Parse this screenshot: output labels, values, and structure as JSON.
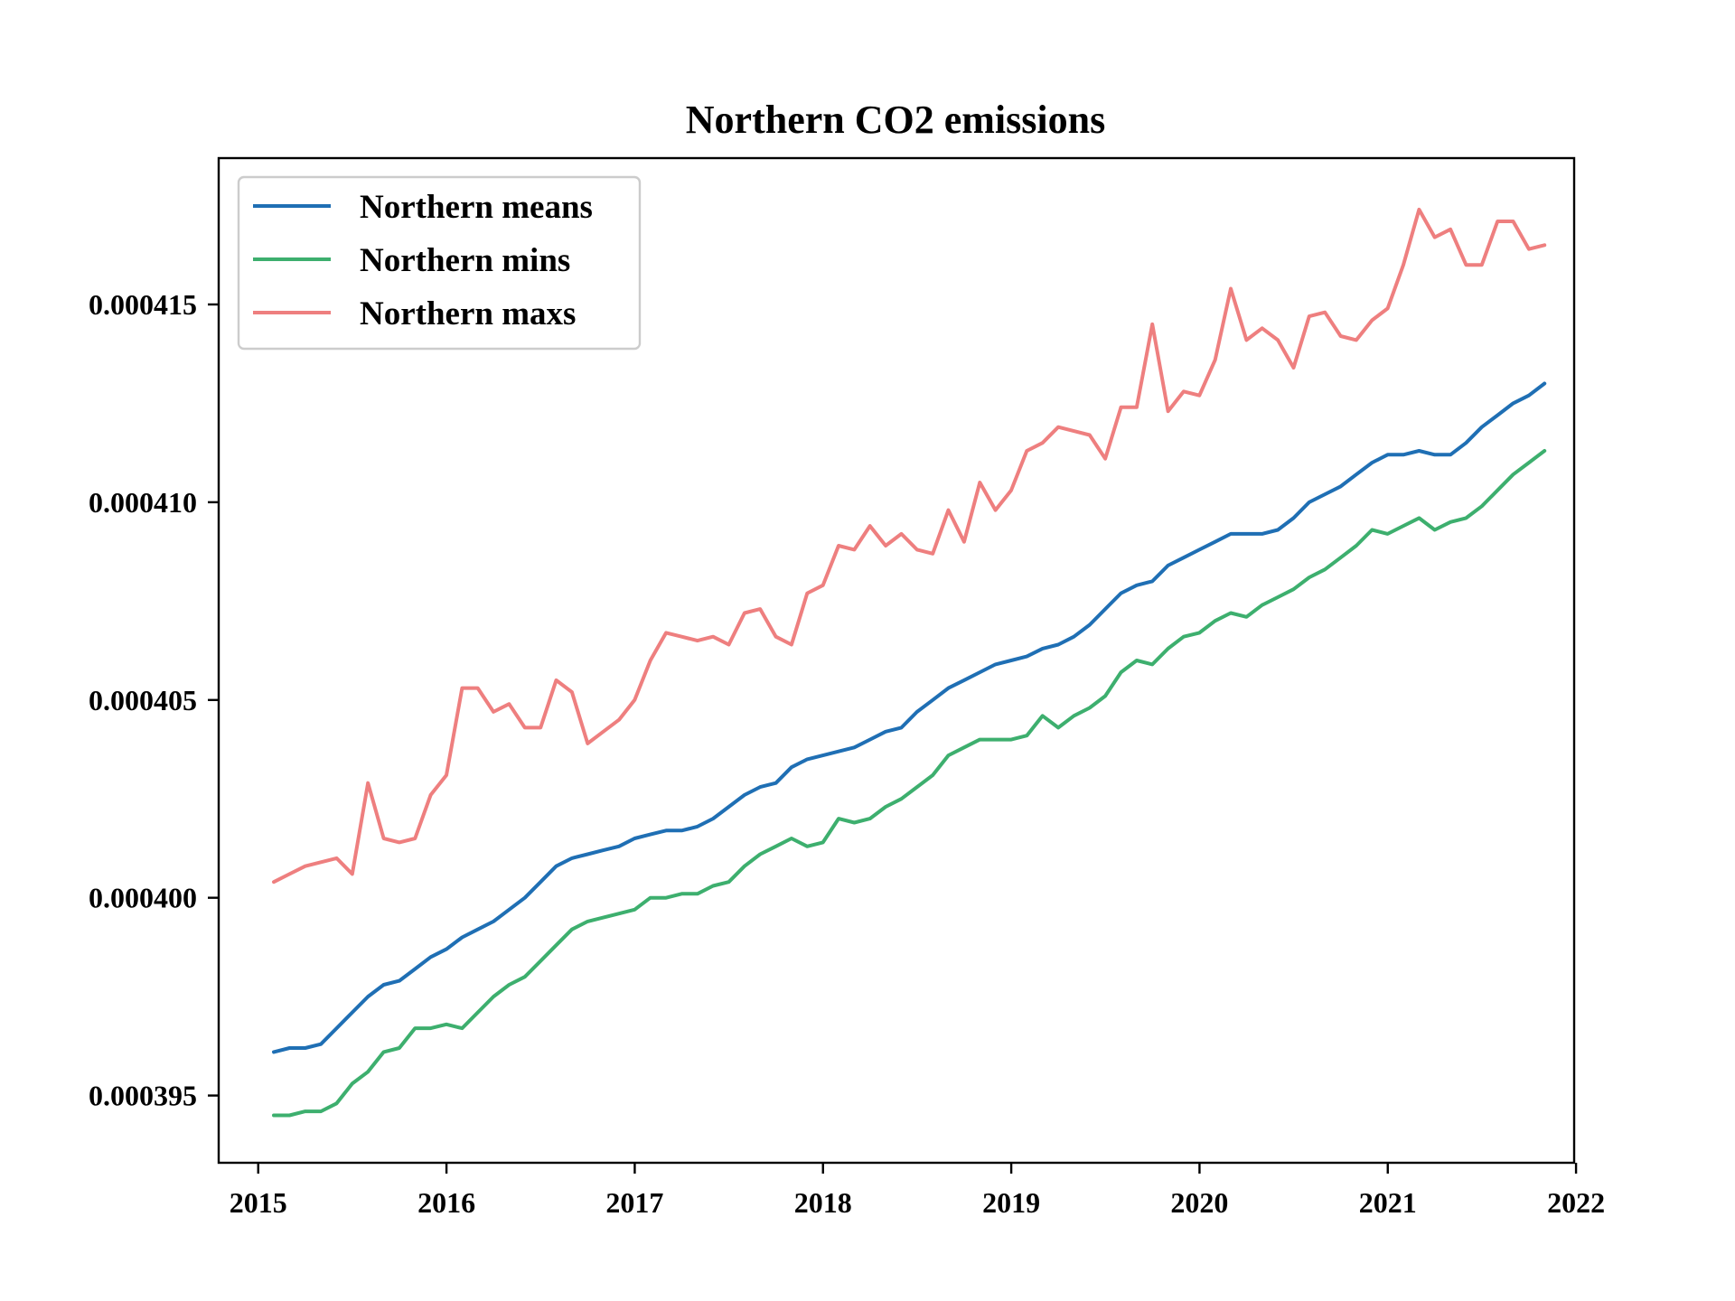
{
  "chart_data": {
    "type": "line",
    "title": "Northern CO2 emissions",
    "xlabel": "",
    "ylabel": "",
    "xlim": [
      2014.79,
      2021.99
    ],
    "ylim": [
      0.0003933,
      0.0004187
    ],
    "x_ticks": [
      "2015",
      "2016",
      "2017",
      "2018",
      "2019",
      "2020",
      "2021",
      "2022"
    ],
    "y_ticks": [
      "0.000395",
      "0.000400",
      "0.000405",
      "0.000410",
      "0.000415"
    ],
    "grid": false,
    "legend_position": "upper-left",
    "x_start": 2015.083,
    "x_step": 0.08333,
    "series": [
      {
        "name": "Northern means",
        "color": "#1f6fb4",
        "values": [
          0.0003961,
          0.0003962,
          0.0003962,
          0.0003963,
          0.0003967,
          0.0003971,
          0.0003975,
          0.0003978,
          0.0003979,
          0.0003982,
          0.0003985,
          0.0003987,
          0.000399,
          0.0003992,
          0.0003994,
          0.0003997,
          0.0004,
          0.0004004,
          0.0004008,
          0.000401,
          0.0004011,
          0.0004012,
          0.0004013,
          0.0004015,
          0.0004016,
          0.0004017,
          0.0004017,
          0.0004018,
          0.000402,
          0.0004023,
          0.0004026,
          0.0004028,
          0.0004029,
          0.0004033,
          0.0004035,
          0.0004036,
          0.0004037,
          0.0004038,
          0.000404,
          0.0004042,
          0.0004043,
          0.0004047,
          0.000405,
          0.0004053,
          0.0004055,
          0.0004057,
          0.0004059,
          0.000406,
          0.0004061,
          0.0004063,
          0.0004064,
          0.0004066,
          0.0004069,
          0.0004073,
          0.0004077,
          0.0004079,
          0.000408,
          0.0004084,
          0.0004086,
          0.0004088,
          0.000409,
          0.0004092,
          0.0004092,
          0.0004092,
          0.0004093,
          0.0004096,
          0.00041,
          0.0004102,
          0.0004104,
          0.0004107,
          0.000411,
          0.0004112,
          0.0004112,
          0.0004113,
          0.0004112,
          0.0004112,
          0.0004115,
          0.0004119,
          0.0004122,
          0.0004125,
          0.0004127,
          0.000413
        ]
      },
      {
        "name": "Northern mins",
        "color": "#3daf6e",
        "values": [
          0.0003945,
          0.0003945,
          0.0003946,
          0.0003946,
          0.0003948,
          0.0003953,
          0.0003956,
          0.0003961,
          0.0003962,
          0.0003967,
          0.0003967,
          0.0003968,
          0.0003967,
          0.0003971,
          0.0003975,
          0.0003978,
          0.000398,
          0.0003984,
          0.0003988,
          0.0003992,
          0.0003994,
          0.0003995,
          0.0003996,
          0.0003997,
          0.0004,
          0.0004,
          0.0004001,
          0.0004001,
          0.0004003,
          0.0004004,
          0.0004008,
          0.0004011,
          0.0004013,
          0.0004015,
          0.0004013,
          0.0004014,
          0.000402,
          0.0004019,
          0.000402,
          0.0004023,
          0.0004025,
          0.0004028,
          0.0004031,
          0.0004036,
          0.0004038,
          0.000404,
          0.000404,
          0.000404,
          0.0004041,
          0.0004046,
          0.0004043,
          0.0004046,
          0.0004048,
          0.0004051,
          0.0004057,
          0.000406,
          0.0004059,
          0.0004063,
          0.0004066,
          0.0004067,
          0.000407,
          0.0004072,
          0.0004071,
          0.0004074,
          0.0004076,
          0.0004078,
          0.0004081,
          0.0004083,
          0.0004086,
          0.0004089,
          0.0004093,
          0.0004092,
          0.0004094,
          0.0004096,
          0.0004093,
          0.0004095,
          0.0004096,
          0.0004099,
          0.0004103,
          0.0004107,
          0.000411,
          0.0004113
        ]
      },
      {
        "name": "Northern maxs",
        "color": "#ee7f7f",
        "values": [
          0.0004004,
          0.0004006,
          0.0004008,
          0.0004009,
          0.000401,
          0.0004006,
          0.0004029,
          0.0004015,
          0.0004014,
          0.0004015,
          0.0004026,
          0.0004031,
          0.0004053,
          0.0004053,
          0.0004047,
          0.0004049,
          0.0004043,
          0.0004043,
          0.0004055,
          0.0004052,
          0.0004039,
          0.0004042,
          0.0004045,
          0.000405,
          0.000406,
          0.0004067,
          0.0004066,
          0.0004065,
          0.0004066,
          0.0004064,
          0.0004072,
          0.0004073,
          0.0004066,
          0.0004064,
          0.0004077,
          0.0004079,
          0.0004089,
          0.0004088,
          0.0004094,
          0.0004089,
          0.0004092,
          0.0004088,
          0.0004087,
          0.0004098,
          0.000409,
          0.0004105,
          0.0004098,
          0.0004103,
          0.0004113,
          0.0004115,
          0.0004119,
          0.0004118,
          0.0004117,
          0.0004111,
          0.0004124,
          0.0004124,
          0.0004145,
          0.0004123,
          0.0004128,
          0.0004127,
          0.0004136,
          0.0004154,
          0.0004141,
          0.0004144,
          0.0004141,
          0.0004134,
          0.0004147,
          0.0004148,
          0.0004142,
          0.0004141,
          0.0004146,
          0.0004149,
          0.000416,
          0.0004174,
          0.0004167,
          0.0004169,
          0.000416,
          0.000416,
          0.0004171,
          0.0004171,
          0.0004164,
          0.0004165
        ]
      }
    ]
  }
}
